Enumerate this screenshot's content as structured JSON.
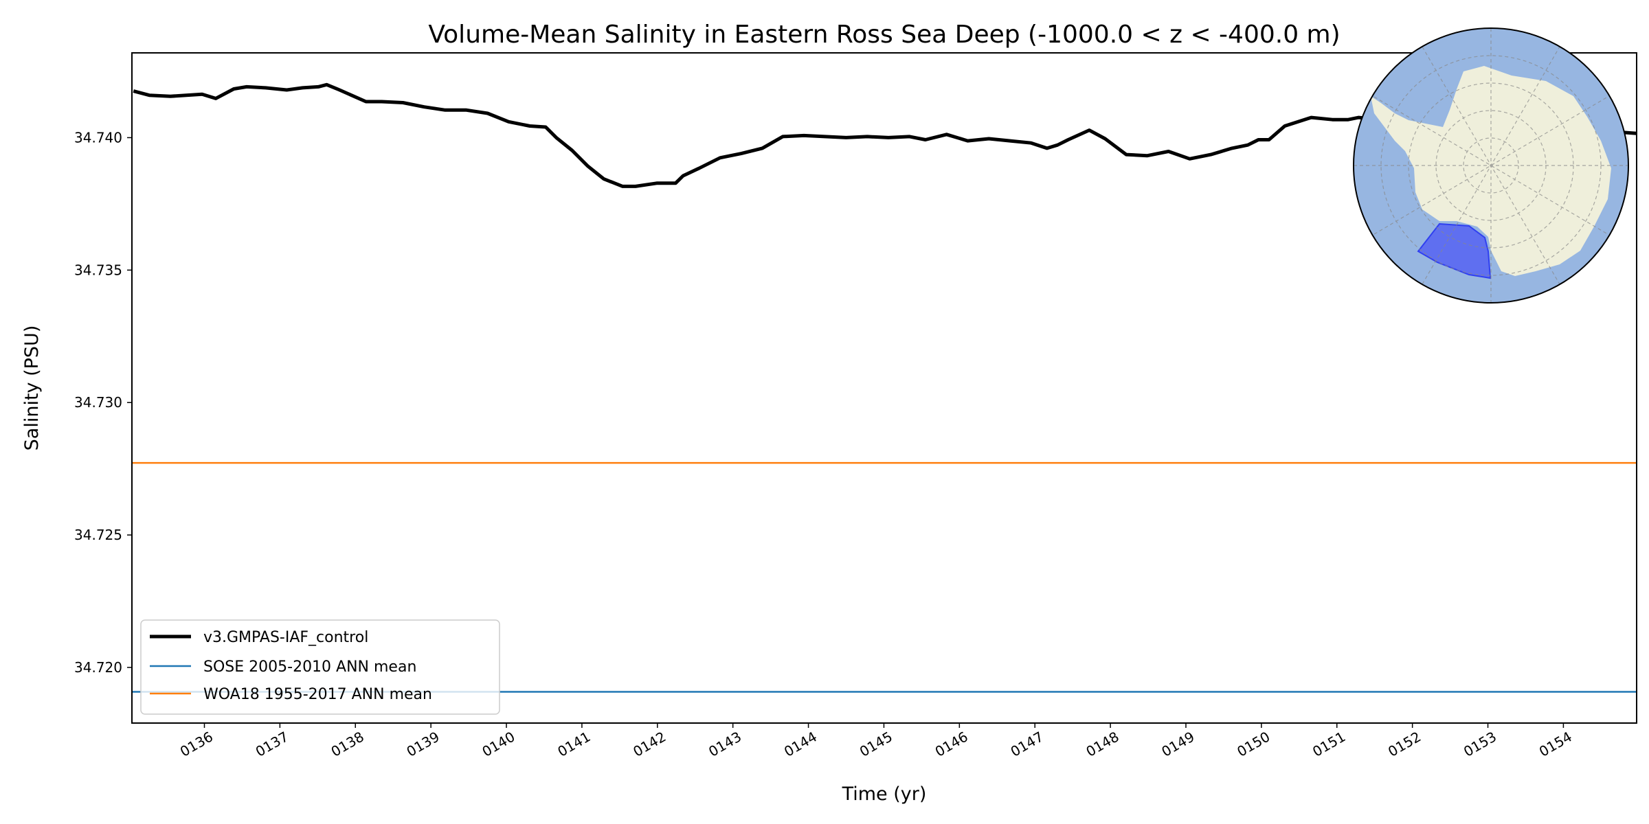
{
  "chart_data": {
    "type": "line",
    "title": "Volume-Mean Salinity in Eastern Ross Sea Deep (-1000.0 < z < -400.0 m)",
    "xlabel": "Time (yr)",
    "ylabel": "Salinity (PSU)",
    "xlim": [
      135.04,
      154.97
    ],
    "ylim": [
      34.7179,
      34.7432
    ],
    "xticks": [
      136,
      137,
      138,
      139,
      140,
      141,
      142,
      143,
      144,
      145,
      146,
      147,
      148,
      149,
      150,
      151,
      152,
      153,
      154
    ],
    "xtick_labels": [
      "0136",
      "0137",
      "0138",
      "0139",
      "0140",
      "0141",
      "0142",
      "0143",
      "0144",
      "0145",
      "0146",
      "0147",
      "0148",
      "0149",
      "0150",
      "0151",
      "0152",
      "0153",
      "0154"
    ],
    "yticks": [
      34.72,
      34.725,
      34.73,
      34.735,
      34.74
    ],
    "ytick_labels": [
      "34.720",
      "34.725",
      "34.730",
      "34.735",
      "34.740"
    ],
    "grid": false,
    "legend_position": "lower-left",
    "series": [
      {
        "name": "v3.GMPAS-IAF_control",
        "color": "#000000",
        "kind": "line",
        "x": [
          135.06,
          135.27,
          135.55,
          135.76,
          135.97,
          136.15,
          136.39,
          136.56,
          136.81,
          137.09,
          137.3,
          137.51,
          137.62,
          137.79,
          138.14,
          138.35,
          138.63,
          138.91,
          139.19,
          139.47,
          139.75,
          140.03,
          140.31,
          140.52,
          140.66,
          140.87,
          141.08,
          141.29,
          141.54,
          141.71,
          141.99,
          142.24,
          142.34,
          142.55,
          142.83,
          143.11,
          143.39,
          143.66,
          143.94,
          144.22,
          144.5,
          144.78,
          145.06,
          145.34,
          145.55,
          145.83,
          146.11,
          146.39,
          146.67,
          146.95,
          147.16,
          147.3,
          147.44,
          147.72,
          147.93,
          148.21,
          148.49,
          148.77,
          149.05,
          149.33,
          149.61,
          149.82,
          149.96,
          150.1,
          150.31,
          150.66,
          150.94,
          151.15,
          151.29,
          151.8,
          152.4,
          153.0,
          153.6,
          154.2,
          154.78,
          154.97
        ],
        "y": [
          34.74176,
          34.7416,
          34.74156,
          34.7416,
          34.74164,
          34.74148,
          34.74184,
          34.74192,
          34.74188,
          34.7418,
          34.74188,
          34.74192,
          34.742,
          34.7418,
          34.74136,
          34.74136,
          34.74132,
          34.74116,
          34.74104,
          34.74104,
          34.74092,
          34.7406,
          34.74044,
          34.7404,
          34.74,
          34.73952,
          34.73892,
          34.73844,
          34.73816,
          34.73816,
          34.73828,
          34.73828,
          34.73856,
          34.73884,
          34.73924,
          34.7394,
          34.7396,
          34.74004,
          34.74008,
          34.74004,
          34.74,
          34.74004,
          34.74,
          34.74004,
          34.73992,
          34.74012,
          34.73988,
          34.73996,
          34.73988,
          34.7398,
          34.7396,
          34.73972,
          34.73992,
          34.74028,
          34.73996,
          34.73936,
          34.73932,
          34.73948,
          34.7392,
          34.73936,
          34.7396,
          34.73972,
          34.73992,
          34.73992,
          34.74044,
          34.74076,
          34.74068,
          34.74068,
          34.74076,
          34.7406,
          34.7404,
          34.7403,
          34.7402,
          34.7402,
          34.7402,
          34.74016
        ]
      },
      {
        "name": "SOSE 2005-2010 ANN mean",
        "color": "#1f77b4",
        "kind": "hline",
        "value": 34.71908
      },
      {
        "name": "WOA18 1955-2017 ANN mean",
        "color": "#ff7f0e",
        "kind": "hline",
        "value": 34.72772
      }
    ],
    "inset_map": {
      "projection": "south-polar-stereographic",
      "ocean_color": "#97b6e1",
      "land_color": "#efefdb",
      "region_color": "#5c6bf0",
      "region": "Eastern Ross Sea"
    }
  }
}
